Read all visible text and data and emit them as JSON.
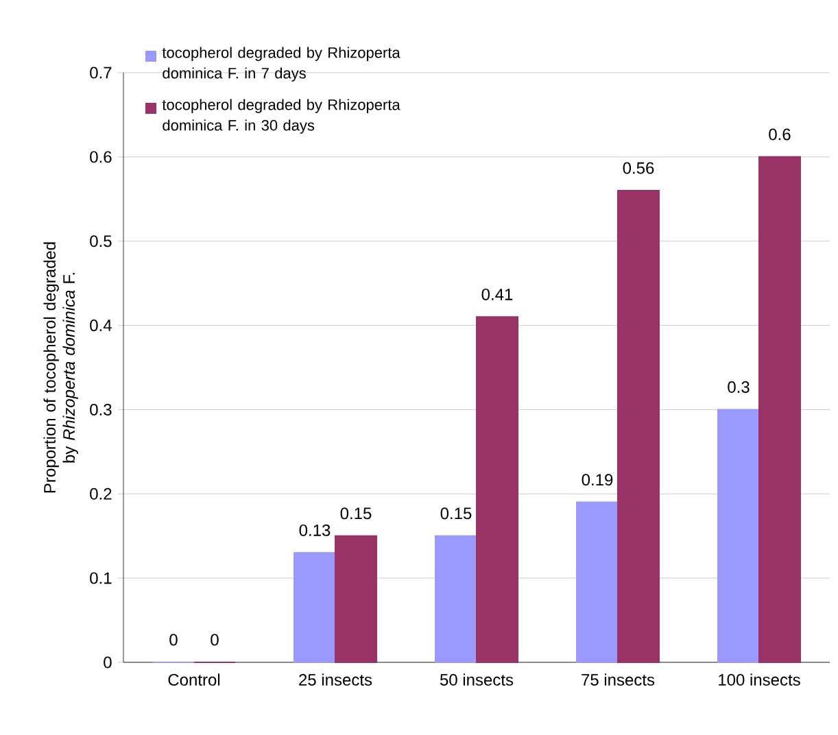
{
  "chart_data": {
    "type": "bar",
    "ylabel": "Proportion of tocopherol degraded by *Rhizoperta dominica* F.",
    "categories": [
      "Control",
      "25 insects",
      "50 insects",
      "75 insects",
      "100 insects"
    ],
    "series": [
      {
        "name": "tocopherol degraded by Rhizoperta dominica F. in 7 days",
        "color": "#9999ff",
        "values": [
          0,
          0.13,
          0.15,
          0.19,
          0.3
        ]
      },
      {
        "name": "tocopherol degraded by Rhizoperta dominica F. in 30 days",
        "color": "#993366",
        "values": [
          0,
          0.15,
          0.41,
          0.56,
          0.6
        ]
      }
    ],
    "ylim": [
      0,
      0.7
    ],
    "yticks": [
      0,
      0.1,
      0.2,
      0.3,
      0.4,
      0.5,
      0.6,
      0.7
    ],
    "grid": "y",
    "legend": "top left",
    "data_labels": true
  }
}
